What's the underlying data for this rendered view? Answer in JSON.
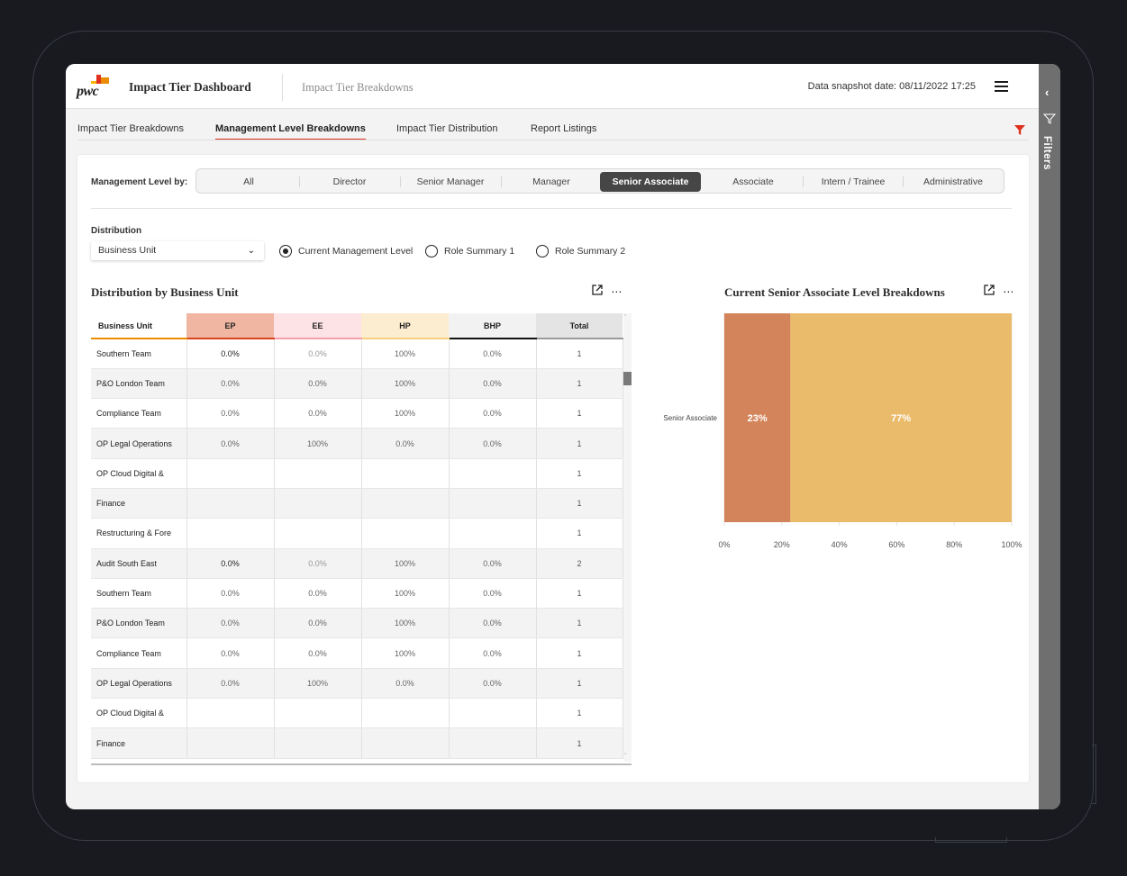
{
  "header": {
    "logo_text": "pwc",
    "app_title": "Impact Tier Dashboard",
    "subtitle": "Impact Tier Breakdowns",
    "snapshot": "Data snapshot date: 08/11/2022 17:25"
  },
  "rail": {
    "label": "Filters"
  },
  "tabs": [
    {
      "label": "Impact Tier Breakdowns",
      "active": false
    },
    {
      "label": "Management Level Breakdowns",
      "active": true
    },
    {
      "label": "Impact Tier Distribution",
      "active": false
    },
    {
      "label": "Report Listings",
      "active": false
    }
  ],
  "management": {
    "label": "Management Level by:",
    "options": [
      "All",
      "Director",
      "Senior Manager",
      "Manager",
      "Senior Associate",
      "Associate",
      "Intern / Trainee",
      "Administrative"
    ],
    "selected": "Senior Associate"
  },
  "distribution": {
    "label": "Distribution",
    "select_value": "Business Unit",
    "radios": [
      {
        "label": "Current Management Level",
        "checked": true
      },
      {
        "label": "Role Summary 1",
        "checked": false
      },
      {
        "label": "Role Summary 2",
        "checked": false
      }
    ]
  },
  "table_panel": {
    "title": "Distribution by Business Unit",
    "columns": [
      "Business Unit",
      "EP",
      "EE",
      "HP",
      "BHP",
      "Total"
    ],
    "rows": [
      [
        "Southern Team",
        "0.0%",
        "0.0%",
        "100%",
        "0.0%",
        "1"
      ],
      [
        "P&O London Team",
        "0.0%",
        "0.0%",
        "100%",
        "0.0%",
        "1"
      ],
      [
        "Compliance Team",
        "0.0%",
        "0.0%",
        "100%",
        "0.0%",
        "1"
      ],
      [
        "OP Legal Operations",
        "0.0%",
        "100%",
        "0.0%",
        "0.0%",
        "1"
      ],
      [
        "OP Cloud Digital &",
        "",
        "",
        "",
        "",
        "1"
      ],
      [
        "Finance",
        "",
        "",
        "",
        "",
        "1"
      ],
      [
        "Restructuring & Fore",
        "",
        "",
        "",
        "",
        "1"
      ],
      [
        "Audit South East",
        "0.0%",
        "0.0%",
        "100%",
        "0.0%",
        "2"
      ],
      [
        "Southern Team",
        "0.0%",
        "0.0%",
        "100%",
        "0.0%",
        "1"
      ],
      [
        "P&O London Team",
        "0.0%",
        "0.0%",
        "100%",
        "0.0%",
        "1"
      ],
      [
        "Compliance Team",
        "0.0%",
        "0.0%",
        "100%",
        "0.0%",
        "1"
      ],
      [
        "OP Legal Operations",
        "0.0%",
        "100%",
        "0.0%",
        "0.0%",
        "1"
      ],
      [
        "OP Cloud Digital &",
        "",
        "",
        "",
        "",
        "1"
      ],
      [
        "Finance",
        "",
        "",
        "",
        "",
        "1"
      ]
    ]
  },
  "chart_panel": {
    "title": "Current Senior Associate Level Breakdowns"
  },
  "chart_data": {
    "type": "bar",
    "orientation": "horizontal",
    "stacked": true,
    "categories": [
      "Senior Associate"
    ],
    "series": [
      {
        "values": [
          23
        ],
        "label": "23%",
        "color": "#d4845a"
      },
      {
        "values": [
          77
        ],
        "label": "77%",
        "color": "#ebbb6c"
      }
    ],
    "xlim": [
      0,
      100
    ],
    "xticks": [
      "0%",
      "20%",
      "40%",
      "60%",
      "80%",
      "100%"
    ],
    "grid": true
  },
  "colors": {
    "accent_red": "#e0301e",
    "accent_orange": "#eb8c00",
    "selected_segment": "#464646"
  }
}
